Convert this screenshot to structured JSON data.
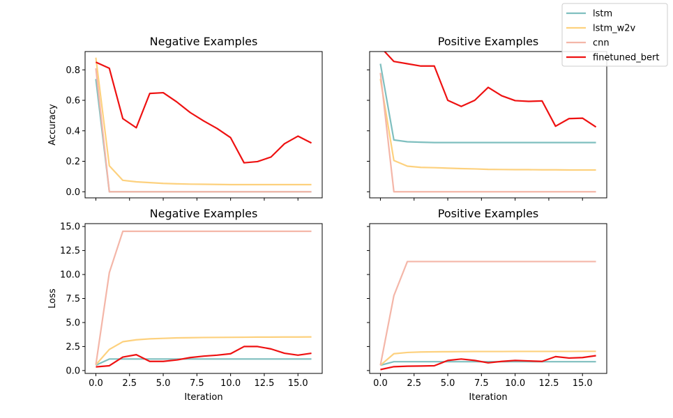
{
  "chart_data": [
    {
      "type": "line",
      "title": "Negative Examples",
      "xlabel": "",
      "ylabel": "Accuracy",
      "xlim": [
        -0.8,
        16.8
      ],
      "ylim": [
        -0.04,
        0.92
      ],
      "xticks": [
        0,
        2.5,
        5,
        7.5,
        10,
        12.5,
        15
      ],
      "xtick_labels": [
        "",
        "",
        "",
        "",
        "",
        "",
        ""
      ],
      "yticks": [
        0,
        0.2,
        0.4,
        0.6,
        0.8
      ],
      "ytick_labels": [
        "0.0",
        "0.2",
        "0.4",
        "0.6",
        "0.8"
      ],
      "x": [
        0,
        1,
        2,
        3,
        4,
        5,
        6,
        7,
        8,
        9,
        10,
        11,
        12,
        13,
        14,
        15,
        16
      ],
      "series": [
        {
          "name": "lstm",
          "color": "#7fbfbf",
          "values": [
            0.74,
            0,
            0,
            0,
            0,
            0,
            0,
            0,
            0,
            0,
            0,
            0,
            0,
            0,
            0,
            0,
            0
          ]
        },
        {
          "name": "lstm_w2v",
          "color": "#fdd17e",
          "values": [
            0.88,
            0.17,
            0.075,
            0.065,
            0.06,
            0.055,
            0.052,
            0.05,
            0.049,
            0.048,
            0.047,
            0.047,
            0.047,
            0.047,
            0.047,
            0.047,
            0.047
          ]
        },
        {
          "name": "cnn",
          "color": "#f4b6a8",
          "values": [
            0.81,
            0,
            0,
            0,
            0,
            0,
            0,
            0,
            0,
            0,
            0,
            0,
            0,
            0,
            0,
            0,
            0
          ]
        },
        {
          "name": "finetuned_bert",
          "color": "#ee1111",
          "values": [
            0.85,
            0.81,
            0.48,
            0.42,
            0.645,
            0.65,
            0.59,
            0.52,
            0.465,
            0.415,
            0.355,
            0.19,
            0.198,
            0.228,
            0.315,
            0.365,
            0.32
          ]
        }
      ]
    },
    {
      "type": "line",
      "title": "Positive Examples",
      "xlabel": "",
      "ylabel": "",
      "xlim": [
        -0.8,
        16.8
      ],
      "ylim": [
        -0.04,
        0.92
      ],
      "xticks": [
        0,
        2.5,
        5,
        7.5,
        10,
        12.5,
        15
      ],
      "xtick_labels": [
        "",
        "",
        "",
        "",
        "",
        "",
        ""
      ],
      "yticks": [
        0,
        0.2,
        0.4,
        0.6,
        0.8
      ],
      "ytick_labels": [
        "",
        "",
        "",
        "",
        ""
      ],
      "x": [
        0,
        1,
        2,
        3,
        4,
        5,
        6,
        7,
        8,
        9,
        10,
        11,
        12,
        13,
        14,
        15,
        16
      ],
      "series": [
        {
          "name": "lstm",
          "color": "#7fbfbf",
          "values": [
            0.84,
            0.34,
            0.328,
            0.325,
            0.323,
            0.323,
            0.323,
            0.323,
            0.323,
            0.323,
            0.323,
            0.323,
            0.323,
            0.323,
            0.323,
            0.323,
            0.323
          ]
        },
        {
          "name": "lstm_w2v",
          "color": "#fdd17e",
          "values": [
            0.74,
            0.205,
            0.168,
            0.16,
            0.158,
            0.155,
            0.152,
            0.15,
            0.147,
            0.146,
            0.145,
            0.145,
            0.144,
            0.144,
            0.143,
            0.143,
            0.143
          ]
        },
        {
          "name": "cnn",
          "color": "#f4b6a8",
          "values": [
            0.78,
            0,
            0,
            0,
            0,
            0,
            0,
            0,
            0,
            0,
            0,
            0,
            0,
            0,
            0,
            0,
            0
          ]
        },
        {
          "name": "finetuned_bert",
          "color": "#ee1111",
          "values": [
            0.95,
            0.855,
            0.84,
            0.825,
            0.825,
            0.6,
            0.56,
            0.6,
            0.685,
            0.63,
            0.598,
            0.593,
            0.596,
            0.43,
            0.48,
            0.483,
            0.425
          ]
        }
      ]
    },
    {
      "type": "line",
      "title": "Negative Examples",
      "xlabel": "Iteration",
      "ylabel": "Loss",
      "xlim": [
        -0.8,
        16.8
      ],
      "ylim": [
        -0.3,
        15.3
      ],
      "xticks": [
        0,
        2.5,
        5,
        7.5,
        10,
        12.5,
        15
      ],
      "xtick_labels": [
        "0.0",
        "2.5",
        "5.0",
        "7.5",
        "10.0",
        "12.5",
        "15.0"
      ],
      "yticks": [
        0,
        2.5,
        5,
        7.5,
        10,
        12.5,
        15
      ],
      "ytick_labels": [
        "0.0",
        "2.5",
        "5.0",
        "7.5",
        "10.0",
        "12.5",
        "15.0"
      ],
      "x": [
        0,
        1,
        2,
        3,
        4,
        5,
        6,
        7,
        8,
        9,
        10,
        11,
        12,
        13,
        14,
        15,
        16
      ],
      "series": [
        {
          "name": "lstm",
          "color": "#7fbfbf",
          "values": [
            0.55,
            1.2,
            1.2,
            1.2,
            1.2,
            1.2,
            1.2,
            1.2,
            1.2,
            1.2,
            1.2,
            1.2,
            1.2,
            1.2,
            1.2,
            1.2,
            1.2
          ]
        },
        {
          "name": "lstm_w2v",
          "color": "#fdd17e",
          "values": [
            0.6,
            2.2,
            3.0,
            3.2,
            3.3,
            3.35,
            3.4,
            3.42,
            3.44,
            3.45,
            3.46,
            3.47,
            3.48,
            3.48,
            3.49,
            3.49,
            3.5
          ]
        },
        {
          "name": "cnn",
          "color": "#f4b6a8",
          "values": [
            0.6,
            10.2,
            14.5,
            14.5,
            14.5,
            14.5,
            14.5,
            14.5,
            14.5,
            14.5,
            14.5,
            14.5,
            14.5,
            14.5,
            14.5,
            14.5,
            14.5
          ]
        },
        {
          "name": "finetuned_bert",
          "color": "#ee1111",
          "values": [
            0.38,
            0.5,
            1.4,
            1.65,
            0.95,
            0.95,
            1.1,
            1.35,
            1.5,
            1.6,
            1.75,
            2.5,
            2.5,
            2.25,
            1.8,
            1.6,
            1.8
          ]
        }
      ]
    },
    {
      "type": "line",
      "title": "Positive Examples",
      "xlabel": "Iteration",
      "ylabel": "",
      "xlim": [
        -0.8,
        16.8
      ],
      "ylim": [
        -0.3,
        15.3
      ],
      "xticks": [
        0,
        2.5,
        5,
        7.5,
        10,
        12.5,
        15
      ],
      "xtick_labels": [
        "0.0",
        "2.5",
        "5.0",
        "7.5",
        "10.0",
        "12.5",
        "15.0"
      ],
      "yticks": [
        0,
        2.5,
        5,
        7.5,
        10,
        12.5,
        15
      ],
      "ytick_labels": [
        "",
        "",
        "",
        "",
        "",
        "",
        ""
      ],
      "x": [
        0,
        1,
        2,
        3,
        4,
        5,
        6,
        7,
        8,
        9,
        10,
        11,
        12,
        13,
        14,
        15,
        16
      ],
      "series": [
        {
          "name": "lstm",
          "color": "#7fbfbf",
          "values": [
            0.55,
            0.92,
            0.92,
            0.92,
            0.92,
            0.92,
            0.92,
            0.92,
            0.92,
            0.92,
            0.92,
            0.92,
            0.92,
            0.92,
            0.92,
            0.92,
            0.92
          ]
        },
        {
          "name": "lstm_w2v",
          "color": "#fdd17e",
          "values": [
            0.55,
            1.75,
            1.88,
            1.93,
            1.95,
            1.96,
            1.97,
            1.98,
            1.98,
            1.98,
            1.99,
            1.99,
            1.99,
            1.99,
            1.99,
            2.0,
            2.0
          ]
        },
        {
          "name": "cnn",
          "color": "#f4b6a8",
          "values": [
            0.55,
            7.8,
            11.35,
            11.35,
            11.35,
            11.35,
            11.35,
            11.35,
            11.35,
            11.35,
            11.35,
            11.35,
            11.35,
            11.35,
            11.35,
            11.35,
            11.35
          ]
        },
        {
          "name": "finetuned_bert",
          "color": "#ee1111",
          "values": [
            0.1,
            0.4,
            0.45,
            0.47,
            0.5,
            1.05,
            1.2,
            1.05,
            0.8,
            0.95,
            1.05,
            1.0,
            0.95,
            1.45,
            1.3,
            1.35,
            1.55
          ]
        }
      ]
    }
  ],
  "legend": {
    "placement": "top-right",
    "entries": [
      {
        "label": "lstm",
        "color": "#7fbfbf"
      },
      {
        "label": "lstm_w2v",
        "color": "#fdd17e"
      },
      {
        "label": "cnn",
        "color": "#f4b6a8"
      },
      {
        "label": "finetuned_bert",
        "color": "#ee1111"
      }
    ]
  }
}
